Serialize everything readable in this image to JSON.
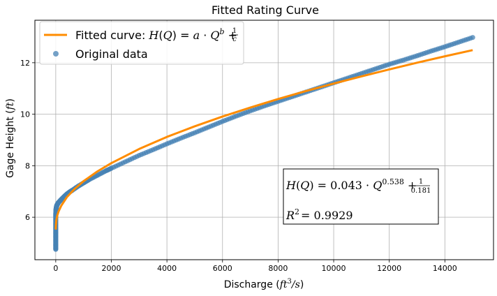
{
  "chart_data": {
    "type": "scatter",
    "title": "Fitted Rating Curve",
    "xlabel": "Discharge (ft³/s)",
    "ylabel": "Gage Height (ft)",
    "xlim": [
      -750,
      15750
    ],
    "ylim": [
      4.35,
      13.65
    ],
    "xticks": [
      0,
      2000,
      4000,
      6000,
      8000,
      10000,
      12000,
      14000
    ],
    "yticks": [
      6,
      8,
      10,
      12
    ],
    "grid": true,
    "legend_position": "top-left",
    "fit": {
      "a": 0.043,
      "b": 0.538,
      "c": 0.181
    },
    "series": [
      {
        "name": "Fitted curve: H(Q) = a · Q^b + 1/c",
        "kind": "line",
        "color": "#ff8c00",
        "x": [
          0,
          5,
          20,
          50,
          100,
          200,
          400,
          700,
          1000,
          1500,
          2000,
          3000,
          4000,
          5000,
          6000,
          7000,
          8000,
          9000,
          10000,
          11000,
          12000,
          13000,
          14000,
          15000
        ],
        "y": [
          5.52,
          5.68,
          5.87,
          6.05,
          6.22,
          6.45,
          6.78,
          7.12,
          7.4,
          7.78,
          8.1,
          8.65,
          9.12,
          9.53,
          9.91,
          10.26,
          10.59,
          10.9,
          11.19,
          11.47,
          11.74,
          12.0,
          12.25,
          12.49
        ]
      },
      {
        "name": "Original data",
        "kind": "scatter",
        "color": "#4682b4",
        "x": [
          0,
          0,
          0,
          0,
          0,
          0,
          0,
          0,
          0,
          0,
          5,
          10,
          15,
          20,
          30,
          40,
          60,
          80,
          100,
          150,
          200,
          300,
          400,
          500,
          600,
          800,
          1000,
          1200,
          1500,
          1800,
          2000,
          2500,
          3000,
          3500,
          4000,
          4500,
          5000,
          5500,
          6000,
          6500,
          7000,
          7500,
          8000,
          8500,
          9000,
          9500,
          10000,
          10500,
          11000,
          11500,
          12000,
          12500,
          13000,
          13500,
          14000,
          14500,
          15000
        ],
        "y": [
          4.75,
          4.9,
          5.05,
          5.2,
          5.35,
          5.5,
          5.65,
          5.8,
          5.95,
          6.1,
          6.2,
          6.28,
          6.33,
          6.37,
          6.42,
          6.46,
          6.5,
          6.54,
          6.57,
          6.63,
          6.69,
          6.8,
          6.9,
          6.98,
          7.05,
          7.2,
          7.33,
          7.46,
          7.63,
          7.8,
          7.9,
          8.15,
          8.4,
          8.62,
          8.85,
          9.07,
          9.28,
          9.5,
          9.72,
          9.93,
          10.13,
          10.32,
          10.5,
          10.68,
          10.86,
          11.04,
          11.22,
          11.4,
          11.58,
          11.76,
          11.94,
          12.1,
          12.27,
          12.45,
          12.62,
          12.8,
          12.98
        ]
      }
    ],
    "legend_labels": {
      "fit_prefix": "Fitted curve: ",
      "data": "Original data"
    },
    "annotation": {
      "equation_prefix": "H(Q) = 0.043 · Q",
      "equation_exp": "0.538",
      "equation_frac_num": "1",
      "equation_frac_den": "0.181",
      "r2_text": "= 0.9929"
    }
  }
}
